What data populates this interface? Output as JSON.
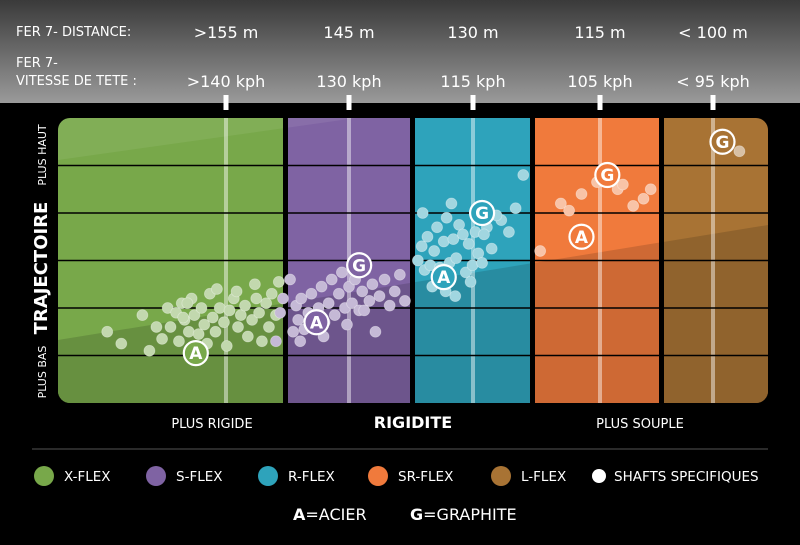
{
  "chart_data": {
    "type": "scatter",
    "header": {
      "distance_label": "FER 7- DISTANCE:",
      "speed_label_line1": "FER 7-",
      "speed_label_line2": "VITESSE DE TETE :",
      "distances": [
        ">155 m",
        "145 m",
        "130 m",
        "115 m",
        "< 100 m"
      ],
      "speeds": [
        ">140 kph",
        "130 kph",
        "115 kph",
        "105 kph",
        "< 95 kph"
      ]
    },
    "ylabel": "TRAJECTOIRE",
    "y_high_label": "PLUS HAUT",
    "y_low_label": "PLUS BAS",
    "xlabel": "RIGIDITE",
    "x_left_label": "PLUS RIGIDE",
    "x_right_label": "PLUS SOUPLE",
    "ylim": [
      0,
      6
    ],
    "categories": [
      "X-FLEX",
      "S-FLEX",
      "R-FLEX",
      "SR-FLEX",
      "L-FLEX"
    ],
    "colors": {
      "X-FLEX": "#78a84a",
      "S-FLEX": "#7f63a3",
      "R-FLEX": "#2ea3bb",
      "SR-FLEX": "#f07a3c",
      "L-FLEX": "#a87334"
    },
    "series": [
      {
        "name": "X-FLEX",
        "acier": [
          0.98,
          1.05
        ],
        "points": [
          [
            0.35,
            1.5
          ],
          [
            0.45,
            1.25
          ],
          [
            0.6,
            1.85
          ],
          [
            0.65,
            1.1
          ],
          [
            0.7,
            1.6
          ],
          [
            0.74,
            1.35
          ],
          [
            0.78,
            2.0
          ],
          [
            0.8,
            1.6
          ],
          [
            0.84,
            1.9
          ],
          [
            0.86,
            1.3
          ],
          [
            0.88,
            2.1
          ],
          [
            0.9,
            1.75
          ],
          [
            0.93,
            1.5
          ],
          [
            0.95,
            2.2
          ],
          [
            0.97,
            1.85
          ],
          [
            1.0,
            1.45
          ],
          [
            1.02,
            2.0
          ],
          [
            1.04,
            1.65
          ],
          [
            1.06,
            1.25
          ],
          [
            1.08,
            2.3
          ],
          [
            1.1,
            1.8
          ],
          [
            1.12,
            1.5
          ],
          [
            1.15,
            2.0
          ],
          [
            1.18,
            1.7
          ],
          [
            1.2,
            1.2
          ],
          [
            1.22,
            1.95
          ],
          [
            1.25,
            2.2
          ],
          [
            1.28,
            1.6
          ],
          [
            1.3,
            1.85
          ],
          [
            1.33,
            2.05
          ],
          [
            1.35,
            1.4
          ],
          [
            1.38,
            1.75
          ],
          [
            1.4,
            2.5
          ],
          [
            1.43,
            1.9
          ],
          [
            1.45,
            1.3
          ],
          [
            1.48,
            2.1
          ],
          [
            1.5,
            1.6
          ],
          [
            1.52,
            2.3
          ],
          [
            1.55,
            1.85
          ],
          [
            1.57,
            2.55
          ],
          [
            0.89,
            1.8
          ],
          [
            0.92,
            2.1
          ],
          [
            1.13,
            2.4
          ],
          [
            1.27,
            2.35
          ],
          [
            1.41,
            2.2
          ]
        ]
      },
      {
        "name": "S-FLEX",
        "acier": [
          1.88,
          1.7
        ],
        "graphite": [
          2.3,
          2.9
        ],
        "points": [
          [
            1.55,
            1.3
          ],
          [
            1.58,
            1.9
          ],
          [
            1.62,
            2.6
          ],
          [
            1.65,
            1.5
          ],
          [
            1.68,
            2.05
          ],
          [
            1.7,
            1.75
          ],
          [
            1.73,
            2.2
          ],
          [
            1.76,
            1.55
          ],
          [
            1.8,
            1.9
          ],
          [
            1.83,
            2.3
          ],
          [
            1.86,
            1.6
          ],
          [
            1.9,
            2.0
          ],
          [
            1.93,
            2.45
          ],
          [
            1.96,
            1.7
          ],
          [
            2.0,
            2.1
          ],
          [
            2.03,
            2.6
          ],
          [
            2.06,
            1.85
          ],
          [
            2.1,
            2.3
          ],
          [
            2.13,
            2.75
          ],
          [
            2.16,
            2.0
          ],
          [
            2.2,
            2.45
          ],
          [
            2.23,
            2.1
          ],
          [
            2.26,
            2.6
          ],
          [
            2.3,
            1.95
          ],
          [
            2.33,
            2.35
          ],
          [
            2.36,
            2.8
          ],
          [
            2.4,
            2.15
          ],
          [
            2.43,
            2.5
          ],
          [
            2.46,
            1.5
          ],
          [
            2.5,
            2.25
          ],
          [
            2.55,
            2.6
          ],
          [
            2.6,
            2.05
          ],
          [
            2.65,
            2.35
          ],
          [
            2.7,
            2.7
          ],
          [
            2.75,
            2.15
          ],
          [
            1.72,
            1.3
          ],
          [
            1.95,
            1.4
          ],
          [
            2.18,
            1.65
          ],
          [
            2.35,
            1.95
          ],
          [
            1.6,
            2.2
          ]
        ]
      },
      {
        "name": "R-FLEX",
        "acier": [
          3.1,
          2.65
        ],
        "graphite": [
          3.5,
          4.0
        ],
        "points": [
          [
            2.83,
            3.0
          ],
          [
            2.87,
            3.3
          ],
          [
            2.9,
            2.8
          ],
          [
            2.93,
            3.5
          ],
          [
            2.96,
            2.9
          ],
          [
            3.0,
            3.2
          ],
          [
            3.03,
            3.7
          ],
          [
            3.06,
            2.85
          ],
          [
            3.1,
            3.4
          ],
          [
            3.13,
            3.9
          ],
          [
            3.16,
            2.95
          ],
          [
            3.2,
            3.45
          ],
          [
            3.23,
            3.05
          ],
          [
            3.26,
            3.75
          ],
          [
            3.3,
            3.55
          ],
          [
            3.33,
            2.75
          ],
          [
            3.36,
            3.35
          ],
          [
            3.4,
            2.9
          ],
          [
            3.43,
            3.6
          ],
          [
            3.46,
            3.15
          ],
          [
            3.5,
            2.95
          ],
          [
            3.55,
            3.7
          ],
          [
            3.6,
            3.25
          ],
          [
            3.7,
            3.85
          ],
          [
            3.78,
            3.6
          ],
          [
            3.85,
            4.1
          ],
          [
            2.98,
            2.45
          ],
          [
            3.12,
            2.35
          ],
          [
            3.22,
            2.25
          ],
          [
            3.38,
            2.55
          ],
          [
            3.52,
            3.55
          ],
          [
            3.65,
            3.95
          ],
          [
            3.93,
            4.8
          ],
          [
            3.18,
            4.2
          ],
          [
            2.88,
            4.0
          ]
        ]
      },
      {
        "name": "SR-FLEX",
        "acier": [
          4.45,
          3.5
        ],
        "graphite": [
          4.7,
          4.8
        ],
        "points": [
          [
            4.05,
            3.2
          ],
          [
            4.25,
            4.2
          ],
          [
            4.33,
            4.05
          ],
          [
            4.45,
            4.4
          ],
          [
            4.6,
            4.65
          ],
          [
            4.72,
            4.85
          ],
          [
            4.8,
            4.5
          ],
          [
            4.85,
            4.6
          ],
          [
            4.95,
            4.15
          ],
          [
            5.05,
            4.3
          ],
          [
            5.12,
            4.5
          ]
        ]
      },
      {
        "name": "L-FLEX",
        "graphite": [
          5.65,
          5.5
        ],
        "points": [
          [
            5.78,
            5.3
          ]
        ]
      }
    ]
  },
  "legend": [
    {
      "label": "X-FLEX",
      "color": "#78a84a"
    },
    {
      "label": "S-FLEX",
      "color": "#7f63a3"
    },
    {
      "label": "R-FLEX",
      "color": "#2ea3bb"
    },
    {
      "label": "SR-FLEX",
      "color": "#f07a3c"
    },
    {
      "label": "L-FLEX",
      "color": "#a87334"
    },
    {
      "label": "SHAFTS SPECIFIQUES",
      "color": "#ffffff"
    }
  ],
  "key": {
    "acier_letter": "A",
    "acier_text": "=ACIER",
    "graphite_letter": "G",
    "graphite_text": "=GRAPHITE"
  }
}
